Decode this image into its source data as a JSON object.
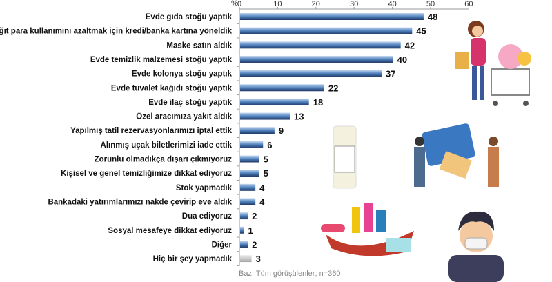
{
  "chart_data": {
    "type": "bar",
    "orientation": "horizontal",
    "xlabel": "%",
    "xlim": [
      0,
      60
    ],
    "xticks": [
      0,
      10,
      20,
      30,
      40,
      50,
      60
    ],
    "categories": [
      "Evde gıda stoğu yaptık",
      "Kağıt para kullanımını azaltmak için kredi/banka kartına yöneldik",
      "Maske satın aldık",
      "Evde temizlik malzemesi stoğu yaptık",
      "Evde kolonya stoğu yaptık",
      "Evde tuvalet kağıdı stoğu yaptık",
      "Evde ilaç stoğu yaptık",
      "Özel aracımıza yakıt aldık",
      "Yapılmış tatil rezervasyonlarımızı iptal ettik",
      "Alınmış uçak biletlerimizi iade ettik",
      "Zorunlu olmadıkça dışarı çıkmıyoruz",
      "Kişisel ve genel temizliğimize dikkat ediyoruz",
      "Stok yapmadık",
      "Bankadaki yatırımlarımızı nakde çevirip eve aldık",
      "Dua ediyoruz",
      "Sosyal mesafeye dikkat ediyoruz",
      "Diğer",
      "Hiç bir şey yapmadık"
    ],
    "values": [
      48,
      45,
      42,
      40,
      37,
      22,
      18,
      13,
      9,
      6,
      5,
      5,
      4,
      4,
      2,
      1,
      2,
      3
    ],
    "colors": {
      "bar": "#4f81bd",
      "bar_none": "#a6a6a6"
    },
    "grid": false,
    "note": "Baz: Tüm görüşülenler; n=360"
  }
}
